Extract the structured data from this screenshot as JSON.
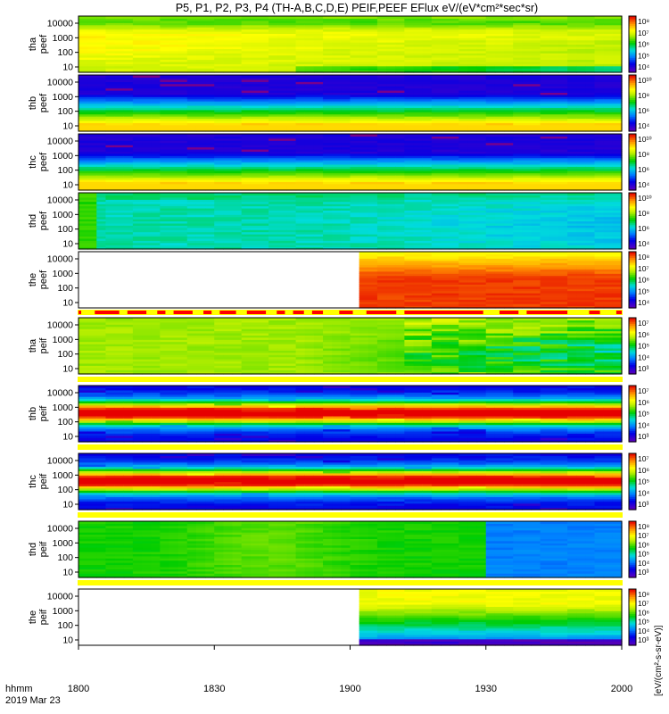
{
  "title": "P5, P1, P2, P3, P4 (TH-A,B,C,D,E) PEIF,PEEF EFlux eV/(eV*cm²*sec*sr)",
  "footer": {
    "time_format": "hhmm",
    "date": "2019 Mar 23"
  },
  "colorbar_unit_label": "[eV/(cm²-s-sr-eV)]",
  "colors": {
    "flag_yellow": "#ffff00",
    "flag_red": "#ff0000",
    "empty": "#ffffff"
  },
  "chart_data": {
    "type": "heatmap",
    "x_ticks": [
      "1800",
      "1830",
      "1900",
      "1930",
      "2000"
    ],
    "x_range": [
      "18:00",
      "20:00"
    ],
    "y_scale": "log",
    "y_ticks": [
      "10",
      "100",
      "1000",
      "10000"
    ],
    "y_ticks_outer": [
      "10",
      "1000",
      "10000"
    ],
    "panels": [
      {
        "label": [
          "tha",
          "peef"
        ],
        "colorbar_ticks": [
          "10⁴",
          "10⁵",
          "10⁶",
          "10⁷",
          "10⁸"
        ],
        "data_start": 0,
        "profile": "e_a"
      },
      {
        "label": [
          "thb",
          "peef"
        ],
        "colorbar_ticks": [
          "10⁴",
          "10⁶",
          "10⁸",
          "10¹⁰"
        ],
        "data_start": 0,
        "profile": "e_bc"
      },
      {
        "label": [
          "thc",
          "peef"
        ],
        "colorbar_ticks": [
          "10⁴",
          "10⁶",
          "10⁸",
          "10¹⁰"
        ],
        "data_start": 0,
        "profile": "e_bc"
      },
      {
        "label": [
          "thd",
          "peef"
        ],
        "colorbar_ticks": [
          "10⁴",
          "10⁶",
          "10⁸",
          "10¹⁰"
        ],
        "data_start": 0,
        "profile": "e_d"
      },
      {
        "label": [
          "the",
          "peef"
        ],
        "colorbar_ticks": [
          "10⁴",
          "10⁵",
          "10⁶",
          "10⁷",
          "10⁸"
        ],
        "data_start": 0.52,
        "profile": "e_e"
      },
      {
        "label": [
          "tha",
          "peif"
        ],
        "colorbar_ticks": [
          "10³",
          "10⁴",
          "10⁵",
          "10⁶",
          "10⁷"
        ],
        "data_start": 0,
        "profile": "i_a"
      },
      {
        "label": [
          "thb",
          "peif"
        ],
        "colorbar_ticks": [
          "10³",
          "10⁴",
          "10⁵",
          "10⁶",
          "10⁷"
        ],
        "data_start": 0,
        "profile": "i_bc"
      },
      {
        "label": [
          "thc",
          "peif"
        ],
        "colorbar_ticks": [
          "10³",
          "10⁴",
          "10⁵",
          "10⁶",
          "10⁷"
        ],
        "data_start": 0,
        "profile": "i_bc"
      },
      {
        "label": [
          "thd",
          "peif"
        ],
        "colorbar_ticks": [
          "10³",
          "10⁴",
          "10⁵",
          "10⁶",
          "10⁷",
          "10⁸"
        ],
        "data_start": 0,
        "profile": "i_d"
      },
      {
        "label": [
          "the",
          "peif"
        ],
        "colorbar_ticks": [
          "10³",
          "10⁴",
          "10⁵",
          "10⁶",
          "10⁷",
          "10⁸"
        ],
        "data_start": 0.52,
        "profile": "i_e"
      }
    ],
    "flag_bars": [
      {
        "after_panel": 4,
        "color": "yellow",
        "red_segments": [
          [
            0,
            0.005
          ],
          [
            0.03,
            0.075
          ],
          [
            0.09,
            0.125
          ],
          [
            0.145,
            0.16
          ],
          [
            0.175,
            0.21
          ],
          [
            0.23,
            0.245
          ],
          [
            0.26,
            0.29
          ],
          [
            0.31,
            0.345
          ],
          [
            0.365,
            0.38
          ],
          [
            0.395,
            0.415
          ],
          [
            0.43,
            0.45
          ],
          [
            0.48,
            0.505
          ],
          [
            0.53,
            0.585
          ],
          [
            0.6,
            0.745
          ],
          [
            0.775,
            0.81
          ],
          [
            0.825,
            0.9
          ],
          [
            0.94,
            0.96
          ],
          [
            0.99,
            1.0
          ]
        ]
      },
      {
        "after_panel": 5,
        "color": "yellow",
        "red_segments": []
      },
      {
        "after_panel": 6,
        "color": "yellow",
        "red_segments": []
      },
      {
        "after_panel": 7,
        "color": "yellow",
        "red_segments": []
      },
      {
        "after_panel": 8,
        "color": "yellow",
        "red_segments": []
      }
    ]
  }
}
